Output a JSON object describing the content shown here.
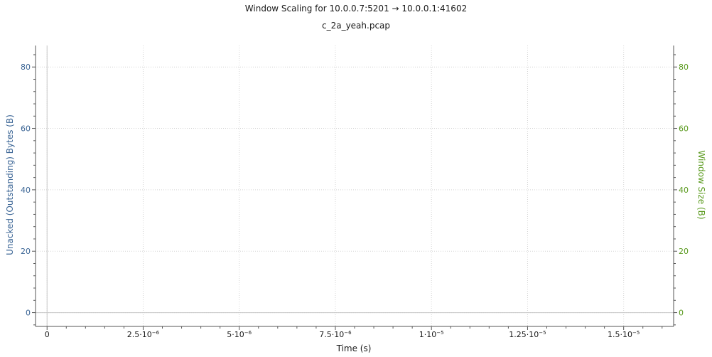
{
  "chart_data": {
    "type": "line",
    "title": "Window Scaling for 10.0.0.7:5201 → 10.0.0.1:41602",
    "subtitle": "c_2a_yeah.pcap",
    "xlabel": "Time (s)",
    "ylabel_left": "Unacked (Outstanding) Bytes (B)",
    "ylabel_right": "Window Size (B)",
    "xlim": [
      -3e-07,
      1.63e-05
    ],
    "ylim": [
      -4.5,
      87
    ],
    "x_ticks": [
      {
        "value": 0,
        "label": "0",
        "sup": ""
      },
      {
        "value": 2.5e-06,
        "label": "2.5·10",
        "sup": "−6"
      },
      {
        "value": 5e-06,
        "label": "5·10",
        "sup": "−6"
      },
      {
        "value": 7.5e-06,
        "label": "7.5·10",
        "sup": "−6"
      },
      {
        "value": 1e-05,
        "label": "1·10",
        "sup": "−5"
      },
      {
        "value": 1.25e-05,
        "label": "1.25·10",
        "sup": "−5"
      },
      {
        "value": 1.5e-05,
        "label": "1.5·10",
        "sup": "−5"
      }
    ],
    "y_ticks": [
      0,
      20,
      40,
      60,
      80
    ],
    "y_tick_labels": [
      "0",
      "20",
      "40",
      "60",
      "80"
    ],
    "grid": true,
    "series": [],
    "colors": {
      "left_axis": "#3c6696",
      "right_axis": "#5a9a1e",
      "grid": "#d4d4d4",
      "axis": "#555555"
    }
  }
}
